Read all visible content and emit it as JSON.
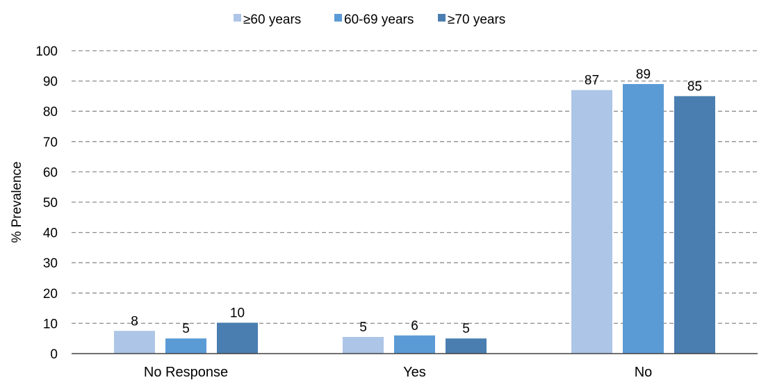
{
  "chart_data": {
    "type": "bar",
    "title": "",
    "xlabel": "",
    "ylabel": "% Prevalence",
    "ylim": [
      0,
      100
    ],
    "yticks": [
      0,
      10,
      20,
      30,
      40,
      50,
      60,
      70,
      80,
      90,
      100
    ],
    "categories": [
      "No Response",
      "Yes",
      "No"
    ],
    "grid": true,
    "legend_position": "top",
    "series": [
      {
        "name": "≥60 years",
        "color": "#adc5e6",
        "values": [
          7.5,
          5.5,
          87
        ],
        "labels": [
          "8",
          "5",
          "87"
        ]
      },
      {
        "name": "60-69 years",
        "color": "#5b9bd5",
        "values": [
          5,
          6,
          89
        ],
        "labels": [
          "5",
          "6",
          "89"
        ]
      },
      {
        "name": "≥70 years",
        "color": "#4a7eb0",
        "values": [
          10.2,
          5,
          85
        ],
        "labels": [
          "10",
          "5",
          "85"
        ]
      }
    ]
  }
}
